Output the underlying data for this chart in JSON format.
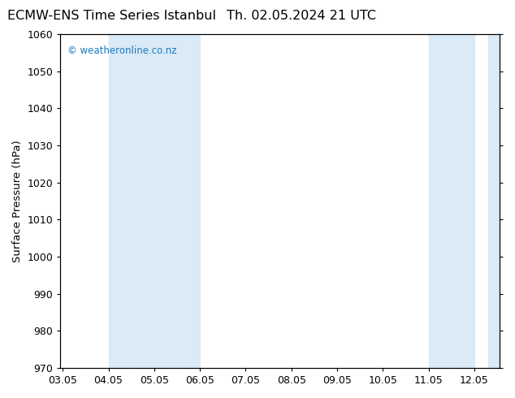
{
  "title_left": "ECMW-ENS Time Series Istanbul",
  "title_right": "Th. 02.05.2024 21 UTC",
  "ylabel": "Surface Pressure (hPa)",
  "ylim": [
    970,
    1060
  ],
  "yticks": [
    970,
    980,
    990,
    1000,
    1010,
    1020,
    1030,
    1040,
    1050,
    1060
  ],
  "x_labels": [
    "03.05",
    "04.05",
    "05.05",
    "06.05",
    "07.05",
    "08.05",
    "09.05",
    "10.05",
    "11.05",
    "12.05"
  ],
  "x_positions": [
    0,
    1,
    2,
    3,
    4,
    5,
    6,
    7,
    8,
    9
  ],
  "xlim": [
    -0.05,
    9.55
  ],
  "shade_bands": [
    {
      "xmin": 1.0,
      "xmax": 3.0,
      "color": "#daeaf6"
    },
    {
      "xmin": 8.0,
      "xmax": 9.0,
      "color": "#daeaf6"
    },
    {
      "xmin": 9.3,
      "xmax": 9.55,
      "color": "#daeaf6"
    }
  ],
  "watermark": "© weatheronline.co.nz",
  "watermark_color": "#1a7abf",
  "background_color": "#ffffff",
  "plot_bg_color": "#ffffff",
  "title_fontsize": 11.5,
  "tick_fontsize": 9,
  "ylabel_fontsize": 9.5
}
